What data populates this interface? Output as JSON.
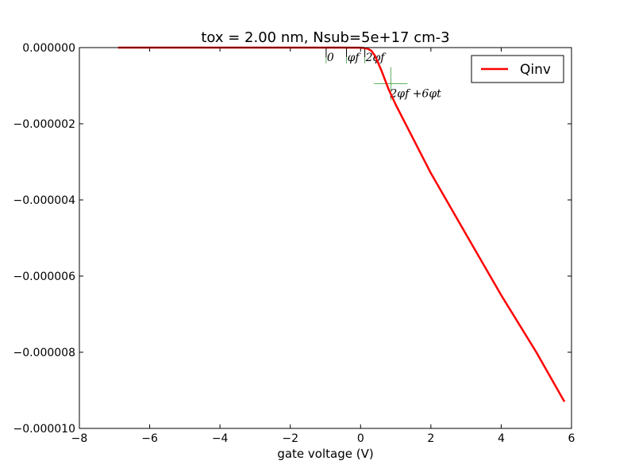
{
  "chart_data": {
    "type": "line",
    "title": "tox =  2.00 nm, Nsub=5e+17 cm-3",
    "xlabel": "gate voltage (V)",
    "ylabel": "",
    "xlim": [
      -8,
      6
    ],
    "ylim": [
      -1e-05,
      0.0
    ],
    "xticks": [
      -8,
      -6,
      -4,
      -2,
      0,
      2,
      4,
      6
    ],
    "xtick_labels": [
      "−8",
      "−6",
      "−4",
      "−2",
      "0",
      "2",
      "4",
      "6"
    ],
    "yticks": [
      0.0,
      -2e-06,
      -4e-06,
      -6e-06,
      -8e-06,
      -1e-05
    ],
    "ytick_labels": [
      "0.000000",
      "−0.000002",
      "−0.000004",
      "−0.000006",
      "−0.000008",
      "−0.000010"
    ],
    "grid": false,
    "legend": "upper-right",
    "series": [
      {
        "name": "Qinv",
        "color": "#ff0000",
        "x": [
          -6.9,
          -6,
          -4,
          -2,
          -1,
          -0.5,
          0,
          0.1,
          0.2,
          0.3,
          0.4,
          0.5,
          0.6,
          0.7,
          0.8,
          0.9,
          1.0,
          1.5,
          2.0,
          3.0,
          4.0,
          5.0,
          5.8
        ],
        "y": [
          0.0,
          0.0,
          0.0,
          0.0,
          0.0,
          0.0,
          -2e-09,
          -1e-08,
          -3e-08,
          -8e-08,
          -2e-07,
          -4e-07,
          -6.2e-07,
          -8.6e-07,
          -1.1e-06,
          -1.3e-06,
          -1.5e-06,
          -2.4e-06,
          -3.3e-06,
          -4.9e-06,
          -6.5e-06,
          -8e-06,
          -9.3e-06
        ]
      }
    ],
    "annotations": [
      {
        "label": "0",
        "x": -0.98,
        "y": 0.0,
        "style": "tick"
      },
      {
        "label": "φf",
        "x": -0.4,
        "y": 0.0,
        "style": "tick"
      },
      {
        "label": "2φf",
        "x": 0.12,
        "y": 0.0,
        "style": "tick"
      },
      {
        "label": "2φf +6φt",
        "x": 0.86,
        "y": -9.5e-07,
        "style": "cross"
      }
    ]
  }
}
